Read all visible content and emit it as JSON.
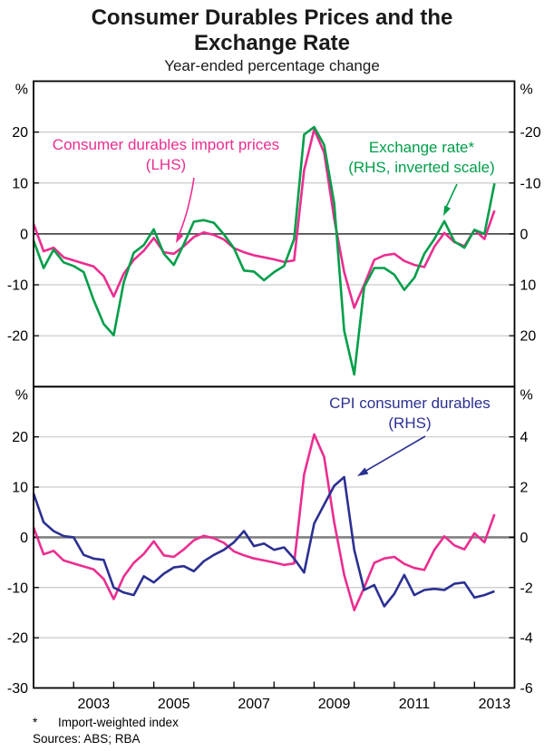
{
  "title": "Consumer Durables Prices and the Exchange Rate",
  "subtitle": "Year-ended percentage change",
  "footnote": {
    "marker": "*",
    "text": "Import-weighted index"
  },
  "sources": "Sources: ABS; RBA",
  "colors": {
    "import_prices": "#EB2D90",
    "exchange_rate": "#009E49",
    "cpi": "#2B3092",
    "grid": "#c9c9c9",
    "zero_top": "#4d4d4d",
    "zero_bottom": "#808080",
    "axis": "#000000"
  },
  "legends": {
    "import_prices": {
      "line1": "Consumer durables import prices",
      "line2": "(LHS)"
    },
    "exchange_rate": {
      "line1": "Exchange rate*",
      "line2": "(RHS, inverted scale)"
    },
    "cpi": {
      "line1": "CPI consumer durables",
      "line2": "(RHS)"
    }
  },
  "chart_data": [
    {
      "type": "line",
      "panel": "top",
      "x_start": 2002.0,
      "x_step": 0.25,
      "x_axis": {
        "range": [
          2002,
          2014
        ],
        "ticks": [
          2003,
          2004,
          2005,
          2006,
          2007,
          2008,
          2009,
          2010,
          2011,
          2012,
          2013
        ],
        "labels": [
          "2003",
          "2005",
          "2007",
          "2009",
          "2011",
          "2013"
        ]
      },
      "left_axis": {
        "unit": "%",
        "range": [
          -30,
          30
        ],
        "ticks": [
          20,
          10,
          0,
          -10,
          -20
        ]
      },
      "right_axis": {
        "unit": "%",
        "range": [
          30,
          -30
        ],
        "ticks": [
          -20,
          -10,
          0,
          10,
          20
        ],
        "inverted": true,
        "scale_to_left": 1
      },
      "series": [
        {
          "id": "import-prices-top",
          "name": "Consumer durables import prices (LHS)",
          "axis": "left",
          "color_key": "import_prices",
          "values": [
            2.0,
            -3.4,
            -2.7,
            -4.6,
            -5.2,
            -5.8,
            -6.4,
            -8.3,
            -12.3,
            -7.8,
            -5.1,
            -3.3,
            -0.8,
            -3.6,
            -3.9,
            -2.4,
            -0.6,
            0.3,
            -0.2,
            -1.1,
            -2.8,
            -3.6,
            -4.2,
            -4.6,
            -5.0,
            -5.5,
            -5.2,
            12.5,
            20.5,
            16.0,
            3.0,
            -7.5,
            -14.5,
            -10.0,
            -5.1,
            -4.2,
            -3.9,
            -5.3,
            -6.1,
            -6.5,
            -2.5,
            0.2,
            -1.6,
            -2.4,
            0.8,
            -1.0,
            4.6
          ]
        },
        {
          "id": "exchange-rate",
          "name": "Exchange rate* (RHS, inverted scale)",
          "axis": "right",
          "color_key": "exchange_rate",
          "values": [
            1.3,
            6.7,
            3.1,
            5.6,
            6.3,
            7.5,
            13.0,
            17.7,
            19.9,
            9.5,
            3.7,
            2.2,
            -0.9,
            3.9,
            6.1,
            2.0,
            -2.4,
            -2.7,
            -2.2,
            0.1,
            2.8,
            7.2,
            7.4,
            9.1,
            7.5,
            6.3,
            1.0,
            -19.5,
            -21.0,
            -17.5,
            -6.0,
            19.0,
            27.6,
            10.4,
            6.7,
            6.7,
            8.0,
            11.0,
            8.6,
            3.9,
            1.0,
            -2.5,
            1.5,
            2.7,
            -0.8,
            0.0,
            -9.9
          ]
        }
      ]
    },
    {
      "type": "line",
      "panel": "bottom",
      "x_start": 2002.0,
      "x_step": 0.25,
      "x_axis": {
        "range": [
          2002,
          2014
        ],
        "ticks": [
          2003,
          2004,
          2005,
          2006,
          2007,
          2008,
          2009,
          2010,
          2011,
          2012,
          2013
        ],
        "labels": [
          "2003",
          "2005",
          "2007",
          "2009",
          "2011",
          "2013"
        ]
      },
      "left_axis": {
        "unit": "%",
        "range": [
          -30,
          30
        ],
        "ticks": [
          20,
          10,
          0,
          -10,
          -20,
          -30
        ]
      },
      "right_axis": {
        "unit": "%",
        "range": [
          -6,
          6
        ],
        "ticks": [
          4,
          2,
          0,
          -2,
          -4,
          -6
        ],
        "inverted": false,
        "scale_to_left": 5
      },
      "series": [
        {
          "id": "import-prices-bottom",
          "name": "Consumer durables import prices (LHS)",
          "axis": "left",
          "color_key": "import_prices",
          "values": [
            2.0,
            -3.4,
            -2.7,
            -4.6,
            -5.2,
            -5.8,
            -6.4,
            -8.3,
            -12.3,
            -7.8,
            -5.1,
            -3.3,
            -0.8,
            -3.6,
            -3.9,
            -2.4,
            -0.6,
            0.3,
            -0.2,
            -1.1,
            -2.8,
            -3.6,
            -4.2,
            -4.6,
            -5.0,
            -5.5,
            -5.2,
            12.5,
            20.5,
            16.0,
            3.0,
            -7.5,
            -14.5,
            -10.0,
            -5.1,
            -4.2,
            -3.9,
            -5.3,
            -6.1,
            -6.5,
            -2.5,
            0.2,
            -1.6,
            -2.4,
            0.8,
            -1.0,
            4.6
          ]
        },
        {
          "id": "cpi",
          "name": "CPI consumer durables (RHS)",
          "axis": "right",
          "color_key": "cpi",
          "values": [
            1.75,
            0.6,
            0.25,
            0.05,
            0.0,
            -0.7,
            -0.85,
            -0.9,
            -2.0,
            -2.2,
            -2.3,
            -1.55,
            -1.8,
            -1.45,
            -1.2,
            -1.15,
            -1.35,
            -0.95,
            -0.7,
            -0.5,
            -0.2,
            0.25,
            -0.35,
            -0.25,
            -0.5,
            -0.4,
            -0.85,
            -1.4,
            0.55,
            1.3,
            2.05,
            2.4,
            -0.5,
            -2.1,
            -1.9,
            -2.75,
            -2.25,
            -1.5,
            -2.3,
            -2.1,
            -2.05,
            -2.1,
            -1.85,
            -1.8,
            -2.4,
            -2.3,
            -2.15
          ]
        }
      ]
    }
  ]
}
